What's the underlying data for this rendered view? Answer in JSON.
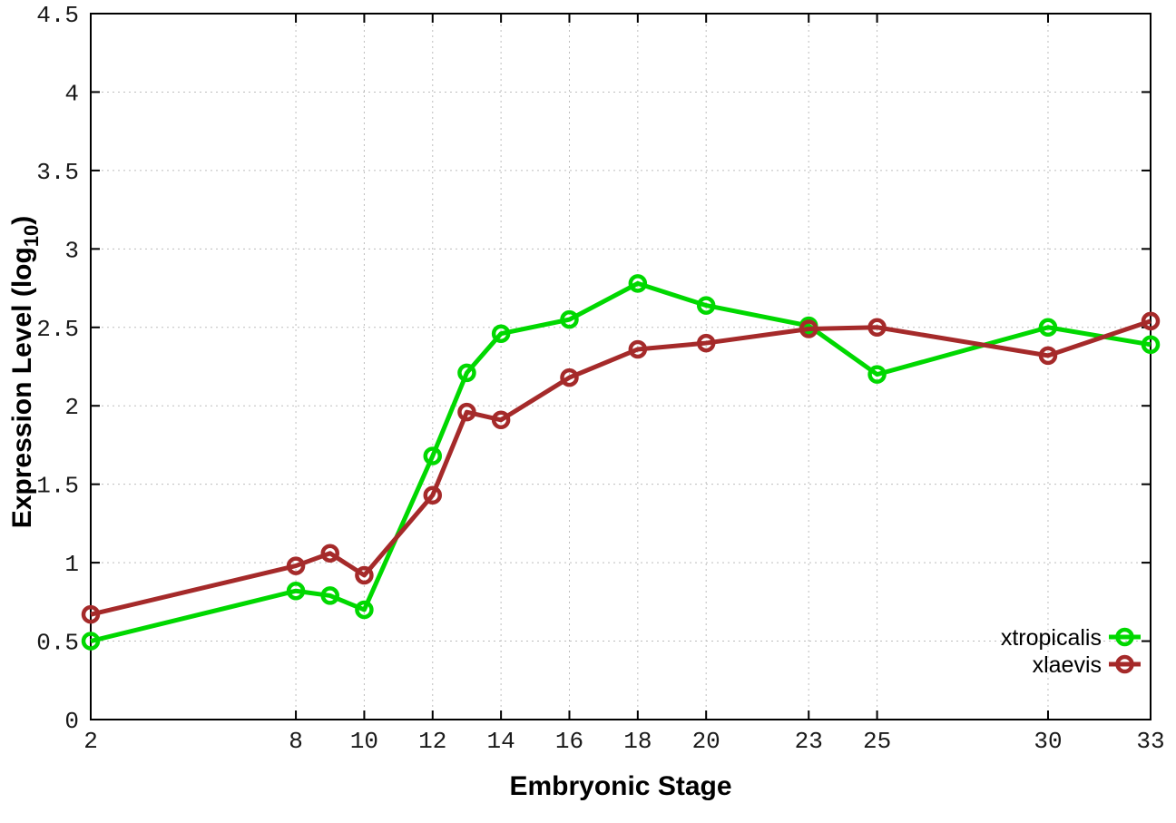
{
  "chart_data": {
    "type": "line",
    "title": "",
    "xlabel": "Embryonic Stage",
    "ylabel": "Expression Level (log10)",
    "ylabel_parts": {
      "prefix": "Expression Level (log",
      "subscript": "10",
      "suffix": ")"
    },
    "x": [
      2,
      8,
      9,
      10,
      12,
      13,
      14,
      16,
      18,
      20,
      23,
      25,
      30,
      33
    ],
    "xlim": [
      2,
      33
    ],
    "ylim": [
      0,
      4.5
    ],
    "xticks": [
      2,
      8,
      10,
      12,
      14,
      16,
      18,
      20,
      23,
      25,
      30,
      33
    ],
    "xtick_labels": [
      "2",
      "8",
      "10",
      "12",
      "14",
      "16",
      "18",
      "20",
      "23",
      "25",
      "30",
      "33"
    ],
    "yticks": [
      0,
      0.5,
      1,
      1.5,
      2,
      2.5,
      3,
      3.5,
      4,
      4.5
    ],
    "ytick_labels": [
      "0",
      "0.5",
      "1",
      "1.5",
      "2",
      "2.5",
      "3",
      "3.5",
      "4",
      "4.5"
    ],
    "grid": true,
    "marker": "open-circle",
    "legend_position": "inside-bottom-right",
    "series": [
      {
        "name": "xtropicalis",
        "color": "#00d800",
        "values": [
          0.5,
          0.82,
          0.79,
          0.7,
          1.68,
          2.21,
          2.46,
          2.55,
          2.78,
          2.64,
          2.51,
          2.2,
          2.5,
          2.39
        ]
      },
      {
        "name": "xlaevis",
        "color": "#a52a2a",
        "values": [
          0.67,
          0.98,
          1.06,
          0.92,
          1.43,
          1.96,
          1.91,
          2.18,
          2.36,
          2.4,
          2.49,
          2.5,
          2.32,
          2.54
        ]
      }
    ],
    "colors": {
      "background": "#ffffff",
      "border": "#000000",
      "grid": "#bdbdbd",
      "tick_text": "#1a1a1a"
    }
  }
}
